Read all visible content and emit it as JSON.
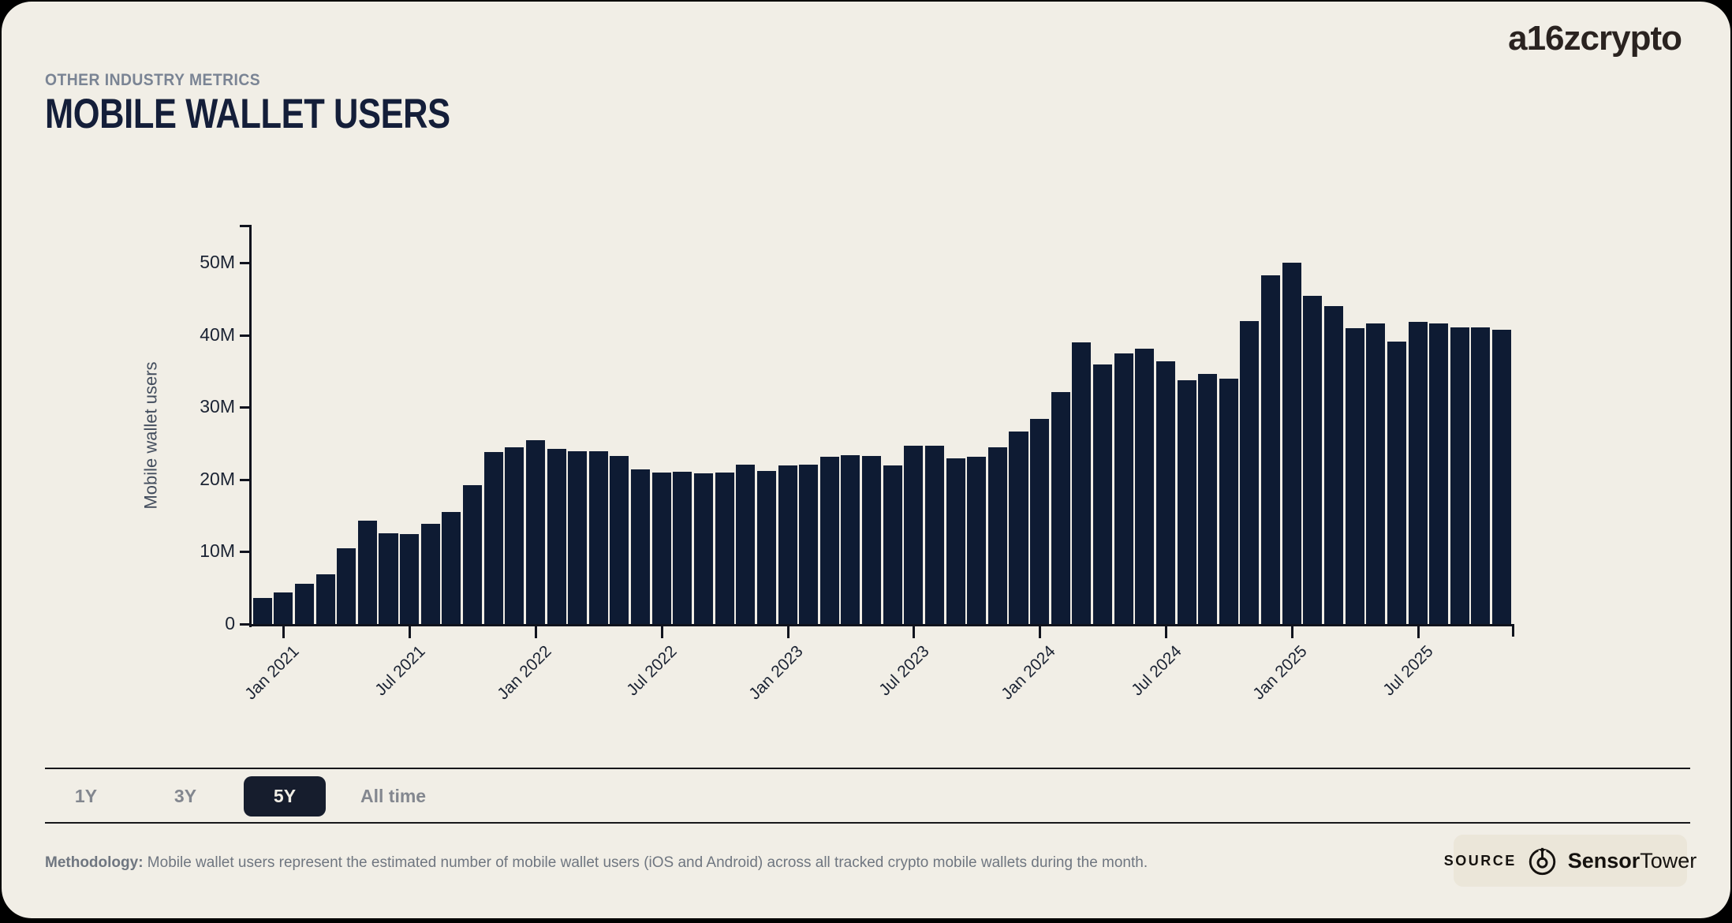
{
  "header": {
    "eyebrow": "OTHER INDUSTRY METRICS",
    "title": "MOBILE WALLET USERS",
    "brand": "a16zcrypto"
  },
  "chart_data": {
    "type": "bar",
    "title": "Mobile wallet users",
    "ylabel": "Mobile wallet users",
    "unit": "M",
    "bar_color": "#0E1B33",
    "background_color": "#F1EEE6",
    "ylim": [
      0,
      55
    ],
    "grid": false,
    "ytick_values": [
      0,
      10,
      20,
      30,
      40,
      50
    ],
    "ytick_labels": [
      "0",
      "10M",
      "20M",
      "30M",
      "40M",
      "50M"
    ],
    "xtick_labels": [
      "Jan 2021",
      "Jul 2021",
      "Jan 2022",
      "Jul 2022",
      "Jan 2023",
      "Jul 2023",
      "Jan 2024",
      "Jul 2024",
      "Jan 2025",
      "Jul 2025"
    ],
    "categories": [
      "Dec 2020",
      "Jan 2021",
      "Feb 2021",
      "Mar 2021",
      "Apr 2021",
      "May 2021",
      "Jun 2021",
      "Jul 2021",
      "Aug 2021",
      "Sep 2021",
      "Oct 2021",
      "Nov 2021",
      "Dec 2021",
      "Jan 2022",
      "Feb 2022",
      "Mar 2022",
      "Apr 2022",
      "May 2022",
      "Jun 2022",
      "Jul 2022",
      "Aug 2022",
      "Sep 2022",
      "Oct 2022",
      "Nov 2022",
      "Dec 2022",
      "Jan 2023",
      "Feb 2023",
      "Mar 2023",
      "Apr 2023",
      "May 2023",
      "Jun 2023",
      "Jul 2023",
      "Aug 2023",
      "Sep 2023",
      "Oct 2023",
      "Nov 2023",
      "Dec 2023",
      "Jan 2024",
      "Feb 2024",
      "Mar 2024",
      "Apr 2024",
      "May 2024",
      "Jun 2024",
      "Jul 2024",
      "Aug 2024",
      "Sep 2024",
      "Oct 2024",
      "Nov 2024",
      "Dec 2024",
      "Jan 2025",
      "Feb 2025",
      "Mar 2025",
      "Apr 2025",
      "May 2025",
      "Jun 2025",
      "Jul 2025",
      "Aug 2025",
      "Sep 2025",
      "Oct 2025",
      "Nov 2025"
    ],
    "values": [
      3.6,
      4.4,
      5.6,
      6.9,
      10.5,
      14.3,
      12.6,
      12.4,
      13.9,
      15.5,
      19.2,
      23.8,
      24.4,
      25.4,
      24.2,
      23.9,
      23.9,
      23.3,
      21.4,
      21.0,
      21.1,
      20.9,
      21.0,
      22.1,
      21.2,
      21.9,
      22.0,
      23.1,
      23.4,
      23.2,
      21.9,
      24.7,
      24.7,
      22.9,
      23.1,
      24.5,
      26.6,
      28.4,
      32.1,
      39.0,
      35.9,
      37.4,
      38.1,
      36.4,
      33.7,
      34.6,
      34.0,
      41.9,
      48.2,
      50.0,
      45.4,
      44.0,
      40.9,
      41.6,
      39.1,
      41.8,
      41.6,
      41.1,
      41.0,
      40.7
    ]
  },
  "controls": {
    "ranges": [
      {
        "label": "1Y",
        "active": false
      },
      {
        "label": "3Y",
        "active": false
      },
      {
        "label": "5Y",
        "active": true
      },
      {
        "label": "All time",
        "active": false
      }
    ]
  },
  "footer": {
    "methodology_label": "Methodology:",
    "methodology_text": " Mobile wallet users represent the estimated number of mobile wallet users (iOS and Android) across all tracked crypto mobile wallets during the month.",
    "source_label": "SOURCE",
    "source_name_bold": "Sensor",
    "source_name_regular": "Tower"
  },
  "colors": {
    "card_background": "#F1EEE6",
    "outer_background": "#000000",
    "bar": "#0E1B33",
    "axis": "#10131D",
    "title": "#141E39",
    "eyebrow": "#7A8494",
    "active_pill": "#161D2D",
    "inactive_label": "#83878F"
  }
}
